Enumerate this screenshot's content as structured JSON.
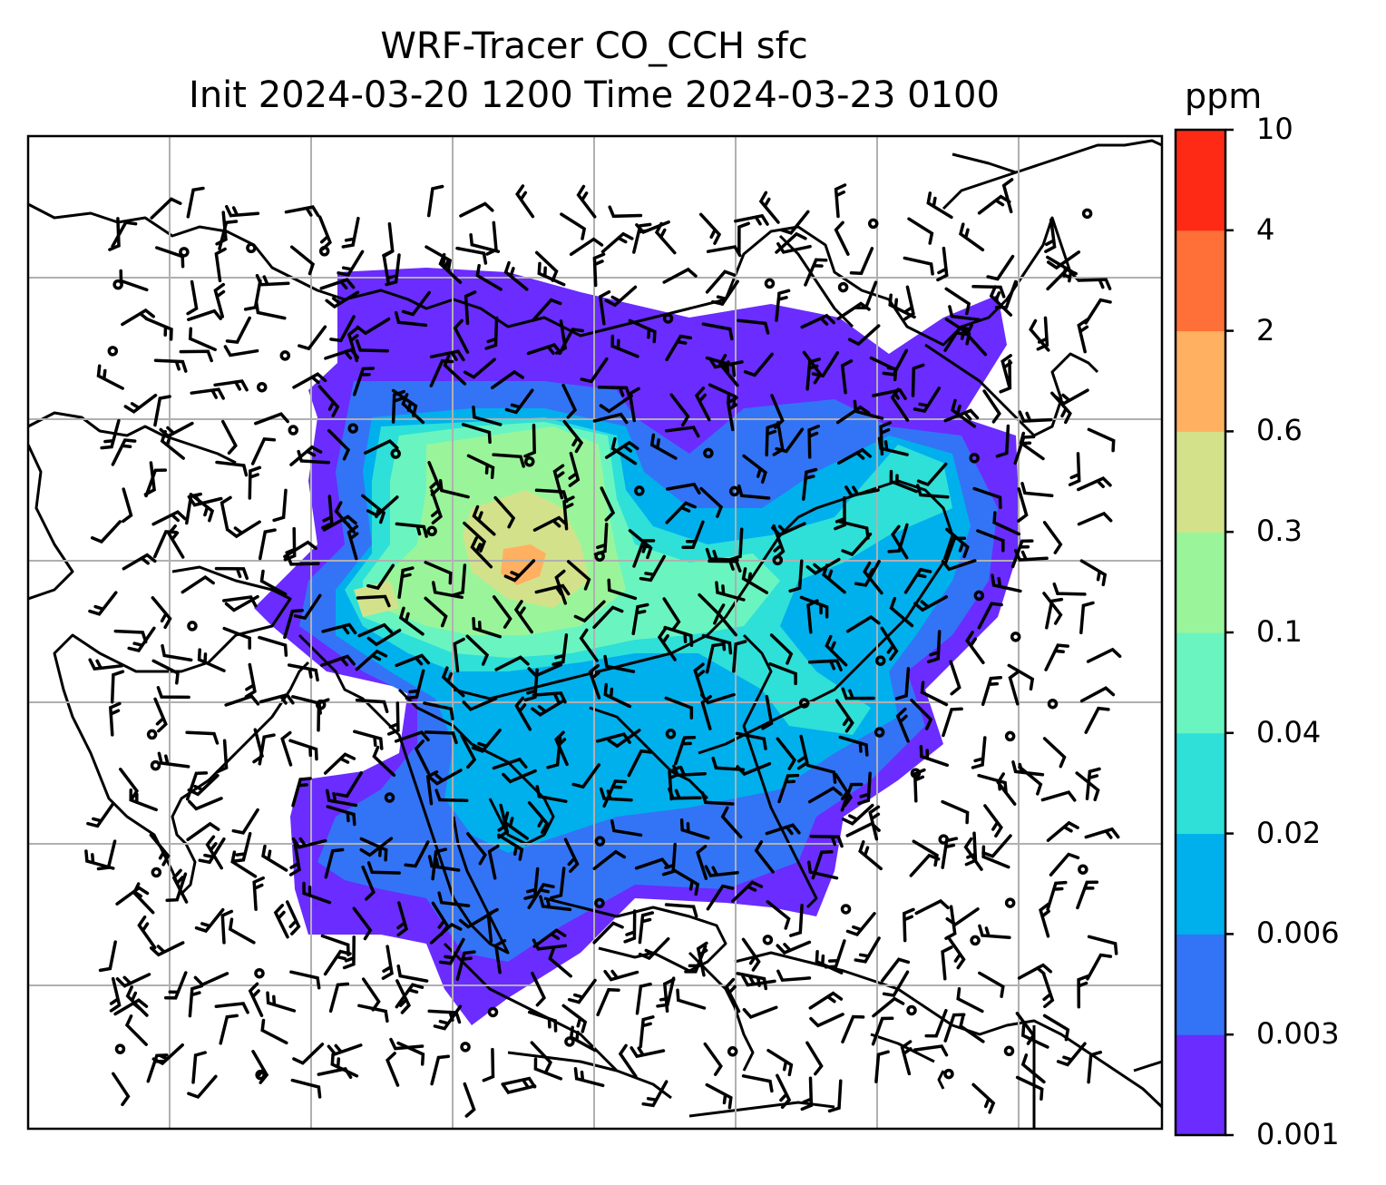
{
  "title": "WRF-Tracer CO_CCH sfc",
  "subtitle": "Init 2024-03-20 1200 Time 2024-03-23 0100",
  "colorbar": {
    "unit": "ppm",
    "ticks": [
      "0.001",
      "0.003",
      "0.006",
      "0.02",
      "0.04",
      "0.1",
      "0.3",
      "0.6",
      "2",
      "4",
      "10"
    ],
    "colors": [
      "#6a2cff",
      "#3374f6",
      "#00b0ec",
      "#2ee0d8",
      "#6af5c0",
      "#9af59a",
      "#d3e28a",
      "#ffb060",
      "#ff7038",
      "#ff2a16"
    ]
  },
  "map": {
    "type": "filled contour map with wind barbs and coastlines",
    "region": "South, East and Southeast Asia",
    "gridlines": true
  }
}
